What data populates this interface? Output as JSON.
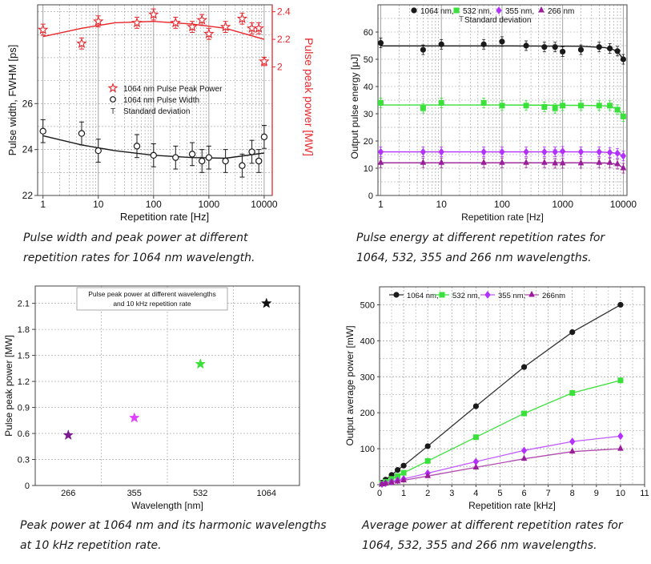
{
  "colors": {
    "red": "#e8262b",
    "black": "#1a1a1a",
    "green": "#3be13b",
    "purple": "#9a1d9a",
    "violet": "#b330ff",
    "grid": "#9a9a9a",
    "axis": "#444444"
  },
  "captions": {
    "p1": [
      "Pulse width and peak power at different",
      "repetition rates for 1064 nm wavelength."
    ],
    "p2": [
      "Pulse energy at different repetition rates for",
      "1064, 532, 355 and 266 nm wavelengths."
    ],
    "p3": [
      "Peak power at 1064 nm and its harmonic wavelengths",
      "at 10 kHz repetition rate."
    ],
    "p4": [
      "Average power at different repetition rates for",
      "1064, 532, 355 and 266 nm wavelengths."
    ]
  },
  "chart_data": [
    {
      "type": "scatter",
      "id": "pulse-width-peak-power",
      "xlabel": "Repetition rate [Hz]",
      "xscale": "log",
      "xlim": [
        0.8,
        14000
      ],
      "xticks": [
        "1",
        "10",
        "100",
        "1000",
        "10000"
      ],
      "ylabel_left": "Pulse width, FWHM [ps]",
      "ylim_left": [
        22,
        30.3
      ],
      "yticks_left": [
        "22",
        "24",
        "26"
      ],
      "ylabel_right": "Pulse peak power [MW]",
      "ylim_right": [
        1.07,
        2.45
      ],
      "yticks_right": [
        "2",
        "2.2",
        "2.4"
      ],
      "legend": [
        "1064 nm Pulse Peak Power",
        "1064 nm Pulse Width",
        "Standard deviation"
      ],
      "legend_position": "center",
      "series": [
        {
          "name": "1064 nm Pulse Peak Power",
          "axis": "right",
          "marker": "star",
          "x": [
            1,
            5,
            10,
            50,
            100,
            250,
            500,
            750,
            1000,
            2000,
            4000,
            6000,
            8000,
            10000
          ],
          "y": [
            2.27,
            2.17,
            2.33,
            2.32,
            2.38,
            2.32,
            2.29,
            2.34,
            2.24,
            2.29,
            2.35,
            2.28,
            2.28,
            2.04
          ],
          "err": [
            0.04,
            0.04,
            0.04,
            0.04,
            0.04,
            0.04,
            0.04,
            0.04,
            0.04,
            0.04,
            0.04,
            0.04,
            0.04,
            0.03
          ],
          "fit": [
            [
              1,
              2.22
            ],
            [
              5,
              2.28
            ],
            [
              20,
              2.32
            ],
            [
              100,
              2.33
            ],
            [
              500,
              2.31
            ],
            [
              2000,
              2.28
            ],
            [
              10000,
              2.2
            ]
          ]
        },
        {
          "name": "1064 nm Pulse Width",
          "axis": "left",
          "marker": "circle",
          "x": [
            1,
            5,
            10,
            50,
            100,
            250,
            500,
            750,
            1000,
            2000,
            4000,
            6000,
            8000,
            10000
          ],
          "y": [
            24.8,
            24.7,
            23.95,
            24.15,
            23.75,
            23.65,
            23.8,
            23.5,
            23.65,
            23.5,
            23.3,
            23.9,
            23.5,
            24.55
          ],
          "err": [
            0.5,
            0.5,
            0.5,
            0.5,
            0.5,
            0.5,
            0.5,
            0.5,
            0.5,
            0.5,
            0.5,
            0.5,
            0.5,
            0.5
          ],
          "fit": [
            [
              1,
              24.6
            ],
            [
              5,
              24.2
            ],
            [
              20,
              23.95
            ],
            [
              100,
              23.75
            ],
            [
              500,
              23.65
            ],
            [
              2000,
              23.62
            ],
            [
              10000,
              23.85
            ]
          ]
        }
      ]
    },
    {
      "type": "scatter",
      "id": "pulse-energy",
      "xlabel": "Repetition rate [Hz]",
      "xscale": "log",
      "xlim": [
        0.9,
        11500
      ],
      "xticks": [
        "1",
        "10",
        "100",
        "1000",
        "10000"
      ],
      "ylabel": "Output pulse energy [μJ]",
      "ylim": [
        0,
        70
      ],
      "yticks": [
        "0",
        "10",
        "20",
        "30",
        "40",
        "50",
        "60"
      ],
      "legend": [
        "1064 nm,",
        "532 nm,",
        "355 nm,",
        "266 nm",
        "Standard deviation"
      ],
      "legend_position": "top",
      "series": [
        {
          "name": "1064 nm,",
          "marker": "circle",
          "x": [
            1,
            5,
            10,
            50,
            100,
            250,
            500,
            750,
            1000,
            2000,
            4000,
            6000,
            8000,
            10000
          ],
          "y": [
            56,
            53.5,
            55.5,
            55.5,
            56.5,
            55,
            54.5,
            54.5,
            52.8,
            53.5,
            54.5,
            54,
            53,
            50
          ],
          "fit": [
            [
              1,
              54.9
            ],
            [
              100,
              54.9
            ],
            [
              2000,
              54.8
            ],
            [
              5000,
              54.3
            ],
            [
              7000,
              53.5
            ],
            [
              8500,
              52
            ],
            [
              10000,
              50.2
            ]
          ]
        },
        {
          "name": "532 nm,",
          "marker": "square",
          "x": [
            1,
            5,
            10,
            50,
            100,
            250,
            500,
            750,
            1000,
            2000,
            4000,
            6000,
            8000,
            10000
          ],
          "y": [
            34,
            32,
            34,
            34,
            33,
            33,
            32.5,
            32,
            33,
            33,
            33,
            33,
            31.5,
            29
          ],
          "fit": [
            [
              1,
              33.2
            ],
            [
              100,
              33.2
            ],
            [
              2000,
              33.1
            ],
            [
              5000,
              32.9
            ],
            [
              7000,
              32.3
            ],
            [
              8500,
              31.2
            ],
            [
              10000,
              29.3
            ]
          ]
        },
        {
          "name": "355 nm,",
          "marker": "diamond",
          "x": [
            1,
            5,
            10,
            50,
            100,
            250,
            500,
            750,
            1000,
            2000,
            4000,
            6000,
            8000,
            10000
          ],
          "y": [
            16,
            16,
            16,
            16,
            16,
            16,
            16,
            16,
            16.2,
            16,
            16,
            15.8,
            15.5,
            14.5
          ],
          "fit": [
            [
              1,
              16
            ],
            [
              100,
              16
            ],
            [
              2000,
              16
            ],
            [
              5000,
              15.9
            ],
            [
              7000,
              15.6
            ],
            [
              8500,
              15.2
            ],
            [
              10000,
              14.5
            ]
          ]
        },
        {
          "name": "266 nm",
          "marker": "triangle",
          "x": [
            1,
            5,
            10,
            50,
            100,
            250,
            500,
            750,
            1000,
            2000,
            4000,
            6000,
            8000,
            10000
          ],
          "y": [
            12,
            12,
            12,
            12,
            12,
            12,
            12,
            11.8,
            11.8,
            11.8,
            12,
            12,
            11.5,
            10
          ],
          "fit": [
            [
              1,
              12
            ],
            [
              100,
              12
            ],
            [
              2000,
              12
            ],
            [
              5000,
              11.9
            ],
            [
              7000,
              11.6
            ],
            [
              8500,
              11.1
            ],
            [
              10000,
              10.1
            ]
          ]
        }
      ]
    },
    {
      "type": "scatter",
      "id": "peak-power-wavelength",
      "title": [
        "Pulse peak power at different wavelengths",
        "and 10 kHz repetition rate"
      ],
      "xlabel": "Wavelength [nm]",
      "categories": [
        "266",
        "355",
        "532",
        "1064"
      ],
      "ylabel": "Pulse peak power [MW]",
      "ylim": [
        0,
        2.3
      ],
      "yticks": [
        "0",
        "0.3",
        "0.6",
        "0.9",
        "1.2",
        "1.5",
        "1.8",
        "2.1"
      ],
      "values": [
        0.58,
        0.78,
        1.4,
        2.1
      ],
      "marker_colors": [
        "#7b1b8f",
        "#e040fb",
        "#3be13b",
        "#111111"
      ],
      "marker": "star"
    },
    {
      "type": "line",
      "id": "average-power",
      "xlabel": "Repetition rate [kHz]",
      "xlim": [
        0,
        11
      ],
      "xticks": [
        "0",
        "1",
        "2",
        "3",
        "4",
        "5",
        "6",
        "7",
        "8",
        "9",
        "10",
        "11"
      ],
      "ylabel": "Output average power [mW]",
      "ylim": [
        0,
        550
      ],
      "yticks": [
        "0",
        "100",
        "200",
        "300",
        "400",
        "500"
      ],
      "legend": [
        "1064 nm,",
        "532 nm,",
        "355 nm,",
        "266nm"
      ],
      "legend_position": "top",
      "series": [
        {
          "name": "1064 nm,",
          "marker": "circle",
          "x": [
            0.1,
            0.25,
            0.5,
            0.75,
            1,
            2,
            4,
            6,
            8,
            10
          ],
          "y": [
            5.6,
            14,
            27,
            41,
            53,
            107,
            218,
            327,
            424,
            500
          ]
        },
        {
          "name": "532 nm,",
          "marker": "square",
          "x": [
            0.1,
            0.25,
            0.5,
            0.75,
            1,
            2,
            4,
            6,
            8,
            10
          ],
          "y": [
            3.4,
            8,
            16,
            24,
            33,
            66,
            132,
            198,
            255,
            290
          ]
        },
        {
          "name": "355 nm,",
          "marker": "diamond",
          "x": [
            0.1,
            0.25,
            0.5,
            0.75,
            1,
            2,
            4,
            6,
            8,
            10
          ],
          "y": [
            1.6,
            4,
            8,
            12,
            16,
            32,
            64,
            95,
            120,
            135
          ]
        },
        {
          "name": "266nm",
          "marker": "triangle",
          "x": [
            0.1,
            0.25,
            0.5,
            0.75,
            1,
            2,
            4,
            6,
            8,
            10
          ],
          "y": [
            1.2,
            3,
            6,
            9,
            12,
            24,
            48,
            72,
            92,
            100
          ]
        }
      ]
    }
  ]
}
